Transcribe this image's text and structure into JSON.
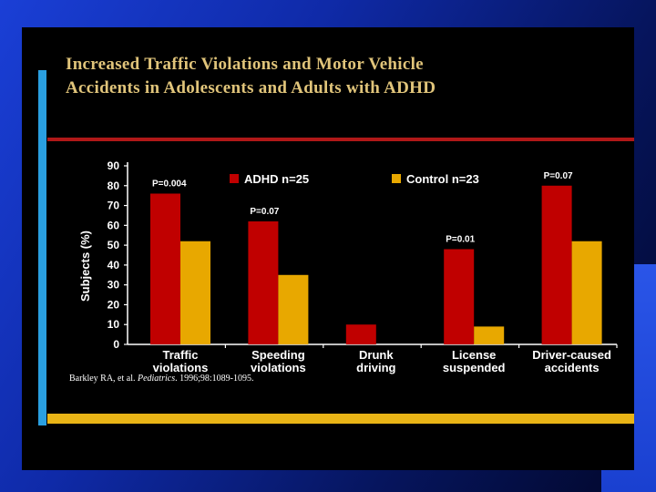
{
  "slide": {
    "title_line1": "Increased Traffic Violations and Motor Vehicle",
    "title_line2": "Accidents in Adolescents and Adults with ADHD",
    "citation_prefix": "Barkley RA, et al. ",
    "citation_journal": "Pediatrics",
    "citation_suffix": ". 1996;98:1089-1095."
  },
  "colors": {
    "adhd": "#c00000",
    "control": "#e8a800",
    "title": "#e0c47a",
    "accent": "#2a9fe0"
  },
  "chart_data": {
    "type": "bar",
    "title": "Increased Traffic Violations and Motor Vehicle Accidents in Adolescents and Adults with ADHD",
    "ylabel": "Subjects (%)",
    "xlabel": "",
    "ylim": [
      0,
      90
    ],
    "yticks": [
      0,
      10,
      20,
      30,
      40,
      50,
      60,
      70,
      80,
      90
    ],
    "categories": [
      [
        "Traffic",
        "violations"
      ],
      [
        "Speeding",
        "violations"
      ],
      [
        "Drunk",
        "driving"
      ],
      [
        "License",
        "suspended"
      ],
      [
        "Driver-caused",
        "accidents"
      ]
    ],
    "series": [
      {
        "name": "ADHD n=25",
        "values": [
          76,
          62,
          10,
          48,
          80
        ]
      },
      {
        "name": "Control n=23",
        "values": [
          52,
          35,
          0,
          9,
          52
        ]
      }
    ],
    "pvalues": [
      "P=0.004",
      "P=0.07",
      "",
      "P=0.01",
      "P=0.07"
    ]
  }
}
